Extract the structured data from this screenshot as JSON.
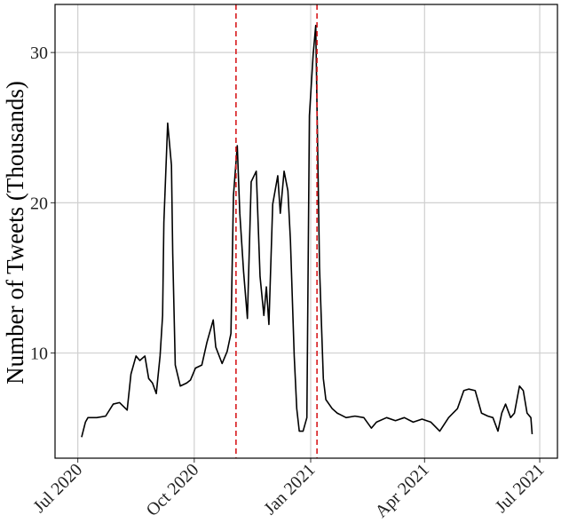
{
  "chart_data": {
    "type": "line",
    "y_label": "Number of Tweets (Thousands)",
    "x": [
      "2020-07-04",
      "2020-07-07",
      "2020-07-09",
      "2020-07-16",
      "2020-07-23",
      "2020-07-29",
      "2020-08-03",
      "2020-08-09",
      "2020-08-12",
      "2020-08-16",
      "2020-08-19",
      "2020-08-23",
      "2020-08-26",
      "2020-08-29",
      "2020-09-01",
      "2020-09-04",
      "2020-09-06",
      "2020-09-07",
      "2020-09-10",
      "2020-09-13",
      "2020-09-14",
      "2020-09-16",
      "2020-09-20",
      "2020-09-25",
      "2020-09-28",
      "2020-10-02",
      "2020-10-07",
      "2020-10-11",
      "2020-10-16",
      "2020-10-18",
      "2020-10-23",
      "2020-10-27",
      "2020-10-30",
      "2020-11-01",
      "2020-11-04",
      "2020-11-06",
      "2020-11-09",
      "2020-11-12",
      "2020-11-15",
      "2020-11-19",
      "2020-11-22",
      "2020-11-25",
      "2020-11-27",
      "2020-11-29",
      "2020-12-02",
      "2020-12-06",
      "2020-12-08",
      "2020-12-11",
      "2020-12-14",
      "2020-12-16",
      "2020-12-19",
      "2020-12-21",
      "2020-12-23",
      "2020-12-26",
      "2020-12-29",
      "2020-12-31",
      "2021-01-03",
      "2021-01-05",
      "2021-01-08",
      "2021-01-11",
      "2021-01-13",
      "2021-01-18",
      "2021-01-22",
      "2021-01-29",
      "2021-02-05",
      "2021-02-12",
      "2021-02-18",
      "2021-02-22",
      "2021-03-02",
      "2021-03-09",
      "2021-03-16",
      "2021-03-23",
      "2021-03-30",
      "2021-04-06",
      "2021-04-13",
      "2021-04-20",
      "2021-04-27",
      "2021-05-02",
      "2021-05-06",
      "2021-05-11",
      "2021-05-16",
      "2021-05-21",
      "2021-05-25",
      "2021-05-29",
      "2021-06-01",
      "2021-06-04",
      "2021-06-08",
      "2021-06-11",
      "2021-06-15",
      "2021-06-18",
      "2021-06-21",
      "2021-06-24",
      "2021-06-25"
    ],
    "values": [
      4.4,
      5.4,
      5.7,
      5.7,
      5.8,
      6.6,
      6.7,
      6.2,
      8.6,
      9.8,
      9.5,
      9.8,
      8.3,
      8.0,
      7.3,
      9.8,
      12.5,
      18.7,
      25.3,
      22.5,
      16.6,
      9.2,
      7.8,
      8.0,
      8.2,
      9.0,
      9.2,
      10.7,
      12.2,
      10.4,
      9.3,
      10.1,
      11.3,
      20.5,
      23.8,
      19.3,
      15.4,
      12.3,
      21.4,
      22.1,
      15.1,
      12.5,
      14.4,
      11.9,
      19.9,
      21.8,
      19.3,
      22.1,
      20.8,
      17.5,
      9.8,
      6.3,
      4.8,
      4.8,
      5.7,
      25.8,
      29.9,
      31.8,
      15.7,
      8.3,
      6.9,
      6.3,
      6.0,
      5.7,
      5.8,
      5.7,
      5.0,
      5.4,
      5.7,
      5.5,
      5.7,
      5.4,
      5.6,
      5.4,
      4.8,
      5.7,
      6.3,
      7.5,
      7.6,
      7.5,
      6.0,
      5.8,
      5.7,
      4.8,
      6.0,
      6.6,
      5.7,
      6.0,
      7.8,
      7.5,
      6.0,
      5.7,
      4.6
    ],
    "color": "#000000",
    "xlim": [
      "2020-06-13",
      "2021-07-15"
    ],
    "xticks": [
      {
        "value": "2020-07-01",
        "label": "Jul 2020"
      },
      {
        "value": "2020-10-01",
        "label": "Oct 2020"
      },
      {
        "value": "2021-01-01",
        "label": "Jan 2021"
      },
      {
        "value": "2021-04-01",
        "label": "Apr 2021"
      },
      {
        "value": "2021-07-01",
        "label": "Jul 2021"
      }
    ],
    "ylim": [
      3,
      33.2
    ],
    "yticks": [
      10,
      20,
      30
    ],
    "grid": true,
    "vlines": {
      "x": [
        "2020-11-03",
        "2021-01-06"
      ],
      "color": "#d7191c"
    }
  }
}
